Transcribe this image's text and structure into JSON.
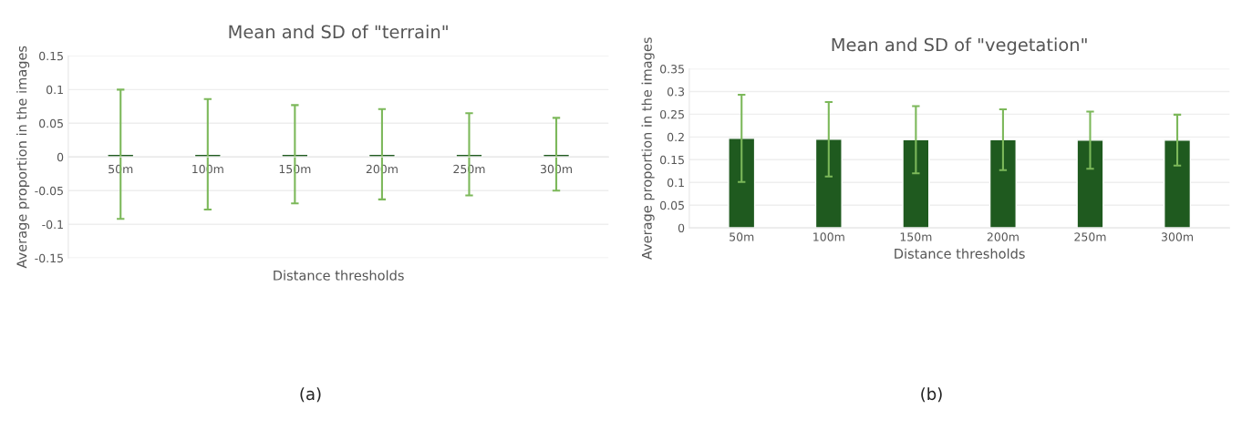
{
  "chart_data": [
    {
      "type": "bar",
      "title": "Mean and SD of \"terrain\"",
      "xlabel": "Distance thresholds",
      "ylabel": "Average proportion in the images",
      "categories": [
        "50m",
        "100m",
        "150m",
        "200m",
        "250m",
        "300m"
      ],
      "values": [
        0.004,
        0.004,
        0.004,
        0.004,
        0.004,
        0.004
      ],
      "errors": [
        0.096,
        0.082,
        0.073,
        0.067,
        0.061,
        0.054
      ],
      "color": "#1f5a1f",
      "ylim": [
        -0.15,
        0.15
      ],
      "yticks": [
        -0.15,
        -0.1,
        -0.05,
        0,
        0.05,
        0.1,
        0.15
      ],
      "grid": "y",
      "annotations": [
        "(a)"
      ]
    },
    {
      "type": "bar",
      "title": "Mean and SD of \"vegetation\"",
      "xlabel": "Distance thresholds",
      "ylabel": "Average proportion in the images",
      "categories": [
        "50m",
        "100m",
        "150m",
        "200m",
        "250m",
        "300m"
      ],
      "values": [
        0.197,
        0.195,
        0.194,
        0.194,
        0.193,
        0.193
      ],
      "errors": [
        0.096,
        0.082,
        0.074,
        0.067,
        0.063,
        0.056
      ],
      "color": "#1f5a1f",
      "ylim": [
        0,
        0.35
      ],
      "yticks": [
        0,
        0.05,
        0.1,
        0.15,
        0.2,
        0.25,
        0.3,
        0.35
      ],
      "grid": "y",
      "annotations": [
        "(b)"
      ]
    }
  ]
}
